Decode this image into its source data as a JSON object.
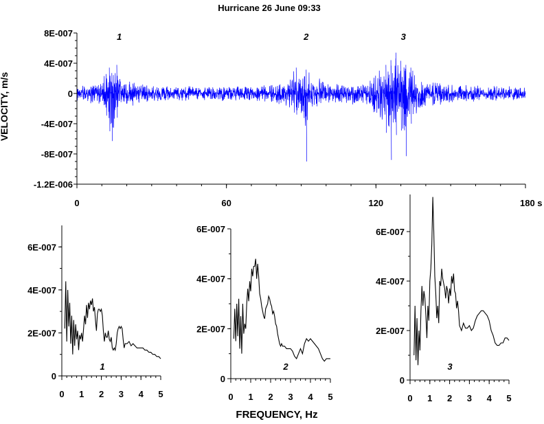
{
  "chart_data": [
    {
      "type": "line",
      "title": "Hurricane  26 June 09:33",
      "ylabel": "VELOCITY, m/s",
      "xlabel": "",
      "x_unit": "s",
      "xlim": [
        0,
        180
      ],
      "ylim": [
        -1.2e-06,
        8e-07
      ],
      "x_ticks": [
        "0",
        "60",
        "120",
        "180 s"
      ],
      "x_tick_values": [
        0,
        60,
        120,
        180
      ],
      "y_ticks": [
        "8E-007",
        "4E-007",
        "0",
        "-4E-007",
        "-8E-007",
        "-1.2E-006"
      ],
      "y_tick_values": [
        8e-07,
        4e-07,
        0,
        -4e-07,
        -8e-07,
        -1.2e-06
      ],
      "line_color": "#0000ff",
      "grid": false,
      "annotations": [
        {
          "text": "1",
          "x": 17
        },
        {
          "text": "2",
          "x": 92
        },
        {
          "text": "3",
          "x": 131
        }
      ],
      "series": [
        {
          "x": [
            0,
            3,
            6,
            9,
            11,
            12,
            13,
            14,
            15,
            16,
            17,
            18,
            20,
            22,
            25,
            28,
            32,
            36,
            40,
            44,
            48,
            52,
            56,
            60,
            64,
            68,
            72,
            76,
            80,
            84,
            86,
            88,
            90,
            91,
            92,
            93,
            94,
            96,
            98,
            100,
            104,
            108,
            112,
            116,
            118,
            120,
            122,
            124,
            126,
            128,
            130,
            132,
            134,
            136,
            138,
            140,
            144,
            148,
            152,
            156,
            160,
            164,
            168,
            172,
            176,
            180
          ],
          "upper": [
            1.2e-07,
            1.3e-07,
            1.5e-07,
            1.8e-07,
            2.5e-07,
            3.5e-07,
            3.8e-07,
            3e-07,
            3.2e-07,
            4.2e-07,
            2.8e-07,
            2.2e-07,
            1.9e-07,
            1.7e-07,
            1.5e-07,
            1.3e-07,
            1.2e-07,
            1.1e-07,
            1e-07,
            1.1e-07,
            1e-07,
            9e-08,
            1e-07,
            1.1e-07,
            1e-07,
            1e-07,
            1.1e-07,
            1.3e-07,
            1.5e-07,
            1.9e-07,
            2.4e-07,
            3.8e-07,
            2.5e-07,
            2.8e-07,
            3.5e-07,
            3.2e-07,
            2.5e-07,
            2.2e-07,
            2e-07,
            1.7e-07,
            1.5e-07,
            1.4e-07,
            1.5e-07,
            1.7e-07,
            2.3e-07,
            2.9e-07,
            3.5e-07,
            4.2e-07,
            4.9e-07,
            6e-07,
            4.8e-07,
            4.2e-07,
            3.8e-07,
            2.8e-07,
            2.4e-07,
            1.8e-07,
            1.6e-07,
            1.4e-07,
            1.3e-07,
            1.2e-07,
            1.2e-07,
            1.1e-07,
            1.1e-07,
            1e-07,
            1e-07,
            1e-07
          ],
          "lower": [
            -1.3e-07,
            -1.4e-07,
            -1.6e-07,
            -2e-07,
            -2.6e-07,
            -4e-07,
            -5e-07,
            -6.3e-07,
            -4.2e-07,
            -3.2e-07,
            -2.6e-07,
            -2.2e-07,
            -2e-07,
            -1.8e-07,
            -1.6e-07,
            -1.4e-07,
            -1.2e-07,
            -1.1e-07,
            -1e-07,
            -1.1e-07,
            -1e-07,
            -1e-07,
            -1e-07,
            -1.1e-07,
            -1e-07,
            -1e-07,
            -1.2e-07,
            -1.3e-07,
            -1.5e-07,
            -1.9e-07,
            -2.5e-07,
            -2.8e-07,
            -3.2e-07,
            -4.5e-07,
            -9e-07,
            -3.5e-07,
            -2.6e-07,
            -2.2e-07,
            -2e-07,
            -1.8e-07,
            -1.6e-07,
            -1.5e-07,
            -1.6e-07,
            -1.8e-07,
            -2.4e-07,
            -3.2e-07,
            -4e-07,
            -5.2e-07,
            -8.8e-07,
            -5.5e-07,
            -4.9e-07,
            -8.3e-07,
            -4e-07,
            -3e-07,
            -2.5e-07,
            -1.9e-07,
            -1.6e-07,
            -1.5e-07,
            -1.4e-07,
            -1.3e-07,
            -1.2e-07,
            -1.2e-07,
            -1.1e-07,
            -1.1e-07,
            -1e-07,
            -1e-07
          ]
        }
      ]
    },
    {
      "type": "line",
      "title": "",
      "xlabel": "",
      "xlim": [
        0,
        5
      ],
      "ylim": [
        0,
        7e-07
      ],
      "x_ticks": [
        "0",
        "1",
        "2",
        "3",
        "4",
        "5"
      ],
      "x_tick_values": [
        0,
        1,
        2,
        3,
        4,
        5
      ],
      "y_ticks": [
        "6E-007",
        "4E-007",
        "2E-007",
        "0"
      ],
      "y_tick_values": [
        6e-07,
        4e-07,
        2e-07,
        0
      ],
      "line_color": "#000000",
      "label": "1",
      "series": [
        {
          "x": [
            0.15,
            0.2,
            0.25,
            0.3,
            0.35,
            0.4,
            0.45,
            0.5,
            0.55,
            0.6,
            0.65,
            0.7,
            0.75,
            0.8,
            0.85,
            0.9,
            0.95,
            1.0,
            1.05,
            1.1,
            1.15,
            1.2,
            1.25,
            1.3,
            1.35,
            1.4,
            1.45,
            1.5,
            1.55,
            1.6,
            1.65,
            1.7,
            1.75,
            1.8,
            1.85,
            1.9,
            1.95,
            2.0,
            2.05,
            2.1,
            2.15,
            2.2,
            2.25,
            2.3,
            2.35,
            2.4,
            2.45,
            2.5,
            2.55,
            2.6,
            2.65,
            2.7,
            2.75,
            2.8,
            2.85,
            2.9,
            2.95,
            3.0,
            3.05,
            3.1,
            3.15,
            3.2,
            3.3,
            3.4,
            3.5,
            3.6,
            3.7,
            3.8,
            3.9,
            4.0,
            4.1,
            4.2,
            4.3,
            4.4,
            4.5,
            4.6,
            4.7,
            4.8,
            4.9,
            5.0
          ],
          "y": [
            2.2e-07,
            4.4e-07,
            1.6e-07,
            4e-07,
            2.3e-07,
            3.4e-07,
            1.5e-07,
            2.8e-07,
            1e-07,
            2.6e-07,
            1.4e-07,
            2.4e-07,
            1.7e-07,
            2.1e-07,
            1.2e-07,
            1.9e-07,
            1.7e-07,
            2e-07,
            1.6e-07,
            2.2e-07,
            2.8e-07,
            2.4e-07,
            3.3e-07,
            2.7e-07,
            3.4e-07,
            3.1e-07,
            3.5e-07,
            3.3e-07,
            3.6e-07,
            3e-07,
            3.2e-07,
            2.6e-07,
            2.1e-07,
            2.9e-07,
            3.1e-07,
            3.1e-07,
            3e-07,
            3.1e-07,
            2.8e-07,
            2.1e-07,
            1.6e-07,
            2e-07,
            1.8e-07,
            1.8e-07,
            2.1e-07,
            1.7e-07,
            1.6e-07,
            1.8e-07,
            1.3e-07,
            1.2e-07,
            1.3e-07,
            1.2e-07,
            1.5e-07,
            2e-07,
            2.2e-07,
            2.3e-07,
            2.2e-07,
            2.3e-07,
            2.2e-07,
            1.7e-07,
            1.3e-07,
            1.5e-07,
            1.5e-07,
            1.6e-07,
            1.4e-07,
            1.5e-07,
            1.4e-07,
            1.3e-07,
            1.3e-07,
            1.3e-07,
            1.3e-07,
            1.2e-07,
            1.2e-07,
            1.1e-07,
            1.1e-07,
            1e-07,
            1e-07,
            9e-08,
            9e-08,
            8e-08
          ]
        }
      ]
    },
    {
      "type": "line",
      "title": "",
      "xlabel": "FREQUENCY, Hz",
      "xlim": [
        0,
        5
      ],
      "ylim": [
        0,
        6e-07
      ],
      "x_ticks": [
        "0",
        "1",
        "2",
        "3",
        "4",
        "5"
      ],
      "x_tick_values": [
        0,
        1,
        2,
        3,
        4,
        5
      ],
      "y_ticks": [
        "6E-007",
        "4E-007",
        "2E-007",
        "0"
      ],
      "y_tick_values": [
        6e-07,
        4e-07,
        2e-07,
        0
      ],
      "line_color": "#000000",
      "label": "2",
      "series": [
        {
          "x": [
            0.15,
            0.2,
            0.25,
            0.3,
            0.35,
            0.4,
            0.45,
            0.5,
            0.55,
            0.6,
            0.65,
            0.7,
            0.75,
            0.8,
            0.85,
            0.9,
            0.95,
            1.0,
            1.05,
            1.1,
            1.15,
            1.2,
            1.25,
            1.3,
            1.35,
            1.4,
            1.45,
            1.5,
            1.55,
            1.6,
            1.65,
            1.7,
            1.75,
            1.8,
            1.85,
            1.9,
            1.95,
            2.0,
            2.05,
            2.1,
            2.15,
            2.2,
            2.25,
            2.3,
            2.35,
            2.4,
            2.45,
            2.5,
            2.55,
            2.6,
            2.7,
            2.8,
            2.9,
            3.0,
            3.1,
            3.2,
            3.3,
            3.4,
            3.5,
            3.6,
            3.7,
            3.8,
            3.9,
            4.0,
            4.1,
            4.2,
            4.3,
            4.4,
            4.5,
            4.6,
            4.7,
            4.8,
            4.9,
            5.0
          ],
          "y": [
            1.6e-07,
            2.8e-07,
            1.5e-07,
            3e-07,
            1.7e-07,
            3.2e-07,
            1.2e-07,
            2.5e-07,
            1e-07,
            3e-07,
            1.8e-07,
            2.2e-07,
            2e-07,
            3e-07,
            3.6e-07,
            3.1e-07,
            3.9e-07,
            3.5e-07,
            4.4e-07,
            4.1e-07,
            4.5e-07,
            4.5e-07,
            4.8e-07,
            4e-07,
            4.6e-07,
            4.1e-07,
            3.4e-07,
            3.2e-07,
            2.9e-07,
            2.7e-07,
            2.5e-07,
            2.4e-07,
            2.8e-07,
            2.9e-07,
            3e-07,
            3.3e-07,
            3.2e-07,
            3e-07,
            2.9e-07,
            2.6e-07,
            2.7e-07,
            2.5e-07,
            2.2e-07,
            2.1e-07,
            1.8e-07,
            1.6e-07,
            1.4e-07,
            1.3e-07,
            1.4e-07,
            1.3e-07,
            1.3e-07,
            1.2e-07,
            1.2e-07,
            1.2e-07,
            1.1e-07,
            9e-08,
            8e-08,
            1e-07,
            1.2e-07,
            1e-07,
            1.4e-07,
            1.6e-07,
            1.5e-07,
            1.6e-07,
            1.5e-07,
            1.4e-07,
            1.3e-07,
            1.2e-07,
            1e-07,
            8e-08,
            7e-08,
            8e-08,
            8e-08,
            8e-08
          ]
        }
      ]
    },
    {
      "type": "line",
      "title": "",
      "xlabel": "",
      "xlim": [
        0,
        5
      ],
      "ylim": [
        0,
        7.5e-07
      ],
      "x_ticks": [
        "0",
        "1",
        "2",
        "3",
        "4",
        "5"
      ],
      "x_tick_values": [
        0,
        1,
        2,
        3,
        4,
        5
      ],
      "y_ticks": [
        "6E-007",
        "4E-007",
        "2E-007",
        "0"
      ],
      "y_tick_values": [
        6e-07,
        4e-07,
        2e-07,
        0
      ],
      "line_color": "#000000",
      "label": "3",
      "series": [
        {
          "x": [
            0.2,
            0.25,
            0.3,
            0.35,
            0.4,
            0.45,
            0.5,
            0.55,
            0.6,
            0.65,
            0.7,
            0.75,
            0.8,
            0.85,
            0.9,
            0.95,
            1.0,
            1.05,
            1.1,
            1.15,
            1.2,
            1.25,
            1.3,
            1.35,
            1.4,
            1.45,
            1.5,
            1.55,
            1.6,
            1.65,
            1.7,
            1.75,
            1.8,
            1.85,
            1.9,
            1.95,
            2.0,
            2.05,
            2.1,
            2.15,
            2.2,
            2.25,
            2.3,
            2.35,
            2.4,
            2.45,
            2.5,
            2.6,
            2.7,
            2.8,
            2.9,
            3.0,
            3.1,
            3.2,
            3.3,
            3.4,
            3.5,
            3.6,
            3.7,
            3.8,
            3.9,
            4.0,
            4.1,
            4.2,
            4.3,
            4.4,
            4.5,
            4.6,
            4.7,
            4.8,
            4.9,
            5.0
          ],
          "y": [
            1e-07,
            3e-07,
            8e-08,
            2.5e-07,
            6e-08,
            2e-07,
            1.2e-07,
            2.8e-07,
            3.8e-07,
            3e-07,
            3.6e-07,
            3.3e-07,
            2.6e-07,
            1.7e-07,
            3e-07,
            2.4e-07,
            4e-07,
            4.5e-07,
            5.5e-07,
            7.4e-07,
            6e-07,
            4.2e-07,
            3.5e-07,
            2.5e-07,
            3e-07,
            2.3e-07,
            4e-07,
            3.8e-07,
            4.5e-07,
            4.1e-07,
            3.9e-07,
            3.7e-07,
            3.3e-07,
            3.8e-07,
            3.6e-07,
            3.1e-07,
            3.7e-07,
            3.4e-07,
            4.2e-07,
            3.9e-07,
            4.3e-07,
            3.6e-07,
            3.5e-07,
            2.9e-07,
            3.2e-07,
            2.8e-07,
            2.2e-07,
            2e-07,
            2.3e-07,
            2.1e-07,
            2.1e-07,
            2.2e-07,
            2e-07,
            2.1e-07,
            2.4e-07,
            2.6e-07,
            2.7e-07,
            2.8e-07,
            2.8e-07,
            2.7e-07,
            2.6e-07,
            2.4e-07,
            2e-07,
            1.8e-07,
            1.5e-07,
            1.4e-07,
            1.4e-07,
            1.5e-07,
            1.5e-07,
            1.7e-07,
            1.7e-07,
            1.6e-07
          ]
        }
      ]
    }
  ]
}
